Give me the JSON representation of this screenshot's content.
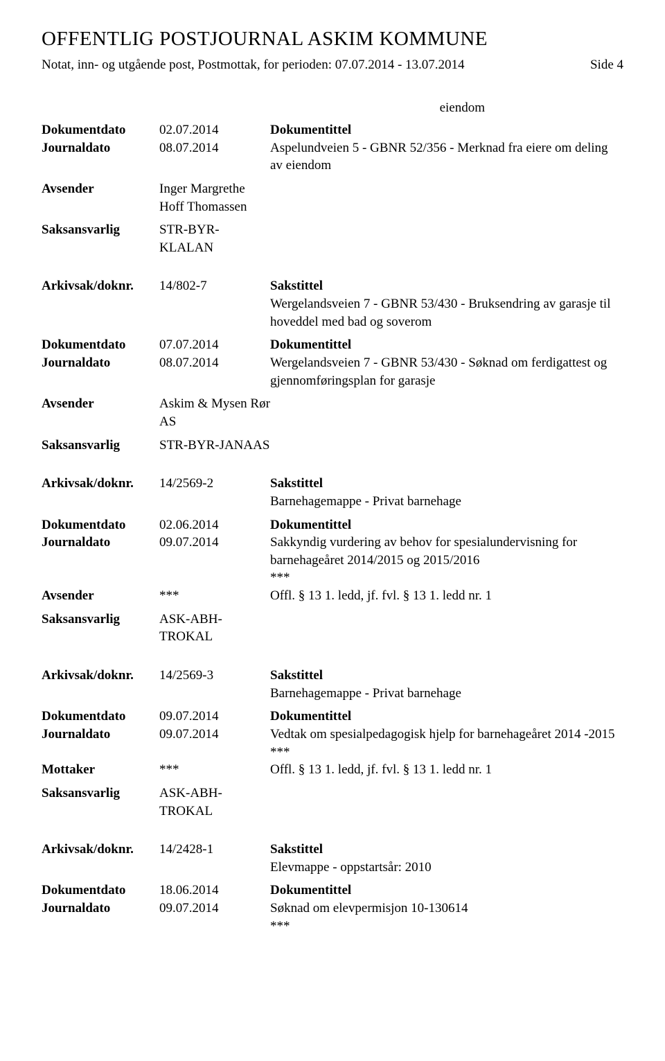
{
  "header": {
    "title": "OFFENTLIG POSTJOURNAL ASKIM KOMMUNE",
    "subtitle": "Notat, inn- og utgående post, Postmottak, for perioden: 07.07.2014 - 13.07.2014",
    "page": "Side 4"
  },
  "orphan": {
    "text": "eiendom"
  },
  "labels": {
    "dokumentdato": "Dokumentdato",
    "journaldato": "Journaldato",
    "dokumentittel": "Dokumentittel",
    "avsender": "Avsender",
    "mottaker": "Mottaker",
    "saksansvarlig": "Saksansvarlig",
    "arkivsak": "Arkivsak/doknr.",
    "sakstittel": "Sakstittel"
  },
  "records": [
    {
      "dokumentdato": "02.07.2014",
      "journaldato": "08.07.2014",
      "dokumentittel": "Aspelundveien 5 - GBNR 52/356 - Merknad fra eiere om deling av eiendom",
      "avsender": "Inger Margrethe Hoff Thomassen",
      "saksansvarlig": "STR-BYR-KLALAN"
    },
    {
      "arkivsak": "14/802-7",
      "sakstittel": "Wergelandsveien 7 - GBNR 53/430 - Bruksendring av garasje til hoveddel med bad og soverom",
      "dokumentdato": "07.07.2014",
      "journaldato": "08.07.2014",
      "dokumentittel": "Wergelandsveien 7 - GBNR 53/430 - Søknad om ferdigattest og gjennomføringsplan for garasje",
      "avsender": "Askim & Mysen Rør AS",
      "saksansvarlig": "STR-BYR-JANAAS"
    },
    {
      "arkivsak": "14/2569-2",
      "sakstittel": "Barnehagemappe - Privat barnehage",
      "dokumentdato": "02.06.2014",
      "journaldato": "09.07.2014",
      "dokumentittel": "Sakkyndig vurdering av behov for spesialundervisning for barnehageåret 2014/2015 og 2015/2016",
      "stars_after_title": "***",
      "avsender": "***",
      "avsender_note": "Offl. § 13 1. ledd, jf. fvl. § 13 1. ledd nr. 1",
      "saksansvarlig": "ASK-ABH-TROKAL"
    },
    {
      "arkivsak": "14/2569-3",
      "sakstittel": "Barnehagemappe - Privat barnehage",
      "dokumentdato": "09.07.2014",
      "journaldato": "09.07.2014",
      "dokumentittel": "Vedtak om spesialpedagogisk hjelp for barnehageåret 2014 -2015",
      "stars_after_title": "***",
      "mottaker": "***",
      "mottaker_note": "Offl. § 13 1. ledd, jf. fvl. § 13 1. ledd nr. 1",
      "saksansvarlig": "ASK-ABH-TROKAL"
    },
    {
      "arkivsak": "14/2428-1",
      "sakstittel": "Elevmappe - oppstartsår: 2010",
      "dokumentdato": "18.06.2014",
      "journaldato": "09.07.2014",
      "dokumentittel": "Søknad om elevpermisjon 10-130614",
      "stars_after_title": "***"
    }
  ]
}
